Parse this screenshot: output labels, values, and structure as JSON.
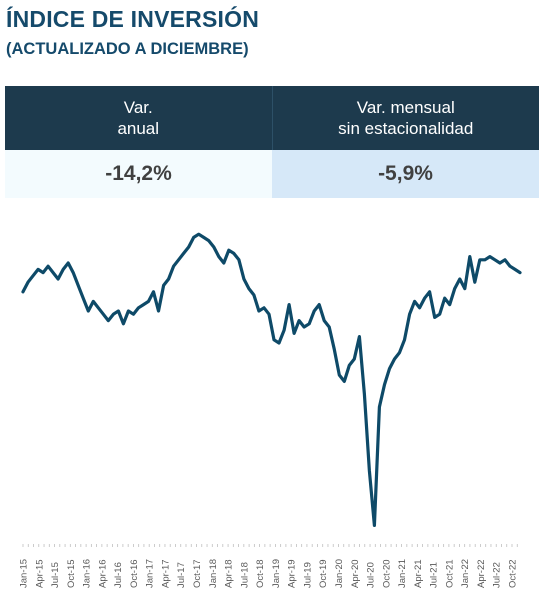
{
  "title": "ÍNDICE DE INVERSIÓN",
  "subtitle": "(ACTUALIZADO A DICIEMBRE)",
  "kpis": [
    {
      "label": "Var.\nanual",
      "value": "-14,2%"
    },
    {
      "label": "Var. mensual\nsin estacionalidad",
      "value": "-5,9%"
    }
  ],
  "colors": {
    "line": "#0e4a68",
    "header": "#1d3a4d",
    "title": "#154a6b"
  },
  "chart_data": {
    "type": "line",
    "title": "",
    "xlabel": "",
    "ylabel": "",
    "grid": false,
    "legend": "none",
    "tick_labels": [
      "Jan-15",
      "Apr-15",
      "Jul-15",
      "Oct-15",
      "Jan-16",
      "Apr-16",
      "Jul-16",
      "Oct-16",
      "Jan-17",
      "Apr-17",
      "Jul-17",
      "Oct-17",
      "Jan-18",
      "Apr-18",
      "Jul-18",
      "Oct-18",
      "Jan-19",
      "Apr-19",
      "Jul-19",
      "Oct-19",
      "Jan-20",
      "Apr-20",
      "Jul-20",
      "Oct-20",
      "Jan-21",
      "Apr-21",
      "Jul-21",
      "Oct-21",
      "Jan-22",
      "Apr-22",
      "Jul-22",
      "Oct-22"
    ],
    "ylim": [
      0,
      100
    ],
    "series": [
      {
        "values": [
          76,
          79,
          81,
          83,
          82,
          84,
          82,
          80,
          83,
          85,
          82,
          78,
          74,
          70,
          73,
          71,
          69,
          67,
          69,
          70,
          66,
          70,
          69,
          71,
          72,
          73,
          76,
          70,
          78,
          80,
          84,
          86,
          88,
          90,
          93,
          94,
          93,
          92,
          90,
          87,
          85,
          89,
          88,
          86,
          80,
          77,
          75,
          70,
          71,
          69,
          61,
          60,
          64,
          72,
          63,
          67,
          65,
          66,
          70,
          72,
          67,
          65,
          58,
          50,
          48,
          53,
          55,
          62,
          44,
          20,
          3,
          40,
          47,
          52,
          55,
          57,
          61,
          69,
          73,
          71,
          74,
          76,
          68,
          69,
          74,
          72,
          77,
          80,
          77,
          87,
          79,
          86,
          86,
          87,
          86,
          85,
          86,
          84,
          83,
          82
        ]
      }
    ]
  }
}
